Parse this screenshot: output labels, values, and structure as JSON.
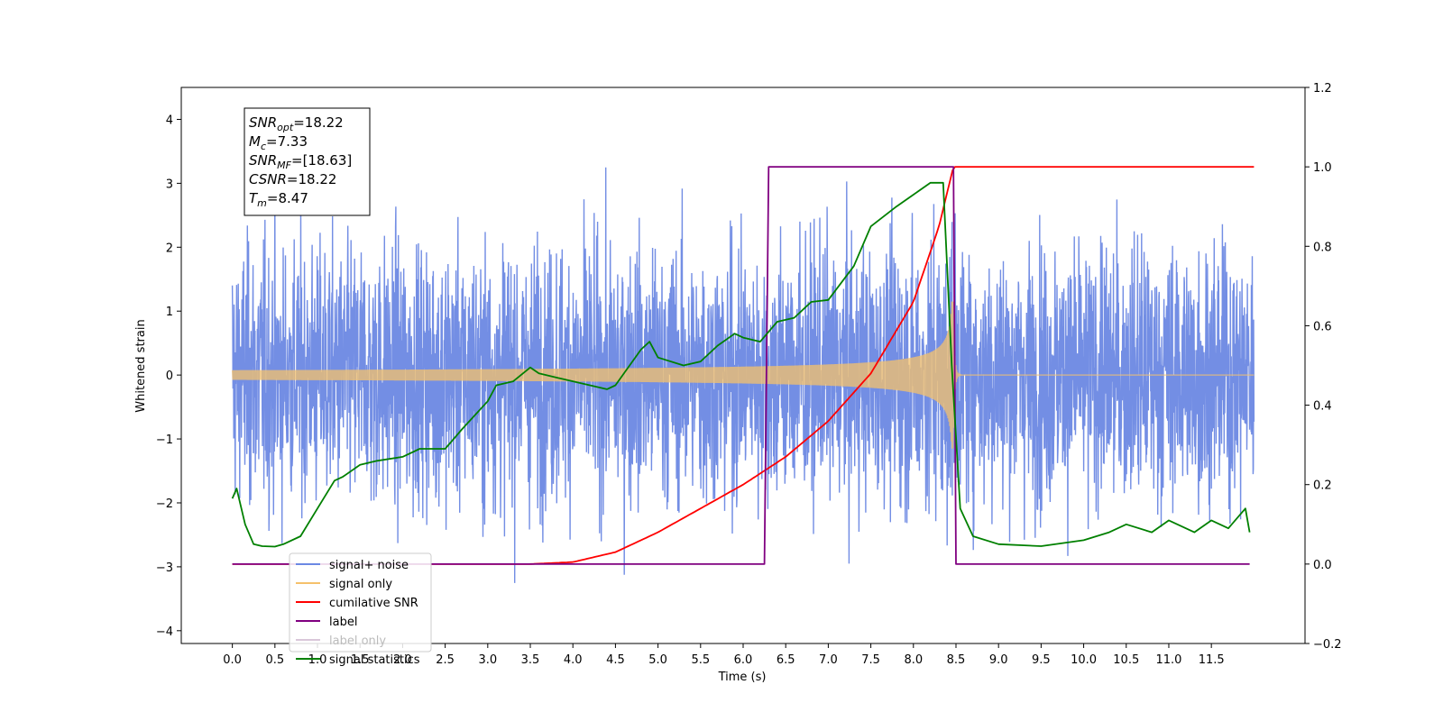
{
  "chart_data": {
    "type": "line",
    "xlabel": "Time (s)",
    "ylabel": "Whitened strain",
    "xlim": [
      -0.6,
      12.6
    ],
    "ylim_left": [
      -4.2,
      4.5
    ],
    "ylim_right": [
      -0.2,
      1.2
    ],
    "x_ticks": [
      "0.0",
      "0.5",
      "1.0",
      "1.5",
      "2.0",
      "2.5",
      "3.0",
      "3.5",
      "4.0",
      "4.5",
      "5.0",
      "5.5",
      "6.0",
      "6.5",
      "7.0",
      "7.5",
      "8.0",
      "8.5",
      "9.0",
      "9.5",
      "10.0",
      "10.5",
      "11.0",
      "11.5"
    ],
    "y_ticks_left": [
      "4",
      "3",
      "2",
      "1",
      "0",
      "−1",
      "−2",
      "−3",
      "−4"
    ],
    "y_ticks_right": [
      "1.2",
      "1.0",
      "0.8",
      "0.6",
      "0.4",
      "0.2",
      "0.0",
      "−0.2"
    ],
    "grid": false,
    "legend_position": "lower-left",
    "series": [
      {
        "name": "signal+ noise",
        "color": "#6b88e3",
        "axis": "left",
        "kind": "noise",
        "x_range": [
          0.0,
          12.0
        ],
        "amplitude_sd": 1.0
      },
      {
        "name": "signal only",
        "color": "#f5c16b",
        "axis": "left",
        "kind": "chirp",
        "merger_time": 8.47,
        "peak_amplitude": 1.15
      },
      {
        "name": "cumilative SNR",
        "color": "#ff0000",
        "axis": "right",
        "x": [
          0.0,
          3.5,
          4.0,
          4.5,
          5.0,
          5.5,
          6.0,
          6.5,
          7.0,
          7.5,
          8.0,
          8.3,
          8.47,
          8.5,
          12.0
        ],
        "y": [
          0.0,
          0.0,
          0.005,
          0.03,
          0.08,
          0.14,
          0.2,
          0.27,
          0.36,
          0.48,
          0.66,
          0.85,
          1.0,
          1.0,
          1.0
        ]
      },
      {
        "name": "label",
        "color": "#800080",
        "axis": "right",
        "x": [
          0.0,
          6.25,
          6.3,
          8.47,
          8.5,
          11.95
        ],
        "y": [
          0.0,
          0.0,
          1.0,
          1.0,
          0.0,
          0.0
        ]
      },
      {
        "name": "label only",
        "color": "#d9c7d9",
        "axis": "right",
        "legend_only": true
      },
      {
        "name": "signal statistics",
        "color": "#008000",
        "axis": "right",
        "x": [
          0.0,
          0.05,
          0.15,
          0.25,
          0.35,
          0.5,
          0.6,
          0.8,
          1.0,
          1.2,
          1.3,
          1.5,
          1.7,
          2.0,
          2.2,
          2.5,
          2.7,
          3.0,
          3.1,
          3.3,
          3.5,
          3.6,
          3.8,
          4.0,
          4.2,
          4.4,
          4.5,
          4.8,
          4.9,
          5.0,
          5.3,
          5.5,
          5.7,
          5.9,
          6.0,
          6.2,
          6.4,
          6.6,
          6.8,
          7.0,
          7.3,
          7.5,
          7.8,
          8.0,
          8.2,
          8.35,
          8.45,
          8.55,
          8.7,
          9.0,
          9.5,
          10.0,
          10.3,
          10.5,
          10.8,
          11.0,
          11.3,
          11.5,
          11.7,
          11.9,
          11.95
        ],
        "y": [
          0.165,
          0.19,
          0.1,
          0.05,
          0.045,
          0.044,
          0.05,
          0.07,
          0.14,
          0.21,
          0.22,
          0.25,
          0.26,
          0.27,
          0.29,
          0.29,
          0.34,
          0.41,
          0.45,
          0.46,
          0.495,
          0.48,
          0.47,
          0.46,
          0.45,
          0.44,
          0.45,
          0.54,
          0.56,
          0.52,
          0.5,
          0.51,
          0.55,
          0.58,
          0.57,
          0.56,
          0.61,
          0.62,
          0.66,
          0.665,
          0.75,
          0.85,
          0.9,
          0.93,
          0.96,
          0.96,
          0.5,
          0.14,
          0.07,
          0.05,
          0.045,
          0.06,
          0.08,
          0.1,
          0.08,
          0.11,
          0.08,
          0.11,
          0.09,
          0.14,
          0.08
        ]
      }
    ],
    "annotation": {
      "lines": [
        {
          "base": "SNR",
          "sub": "opt",
          "value": "=18.22"
        },
        {
          "base": "M",
          "sub": "c",
          "value": "=7.33"
        },
        {
          "base": "SNR",
          "sub": "MF",
          "value": "=[18.63]"
        },
        {
          "base": "CSNR",
          "sub": "",
          "value": "=18.22"
        },
        {
          "base": "T",
          "sub": "m",
          "value": "=8.47"
        }
      ]
    }
  }
}
